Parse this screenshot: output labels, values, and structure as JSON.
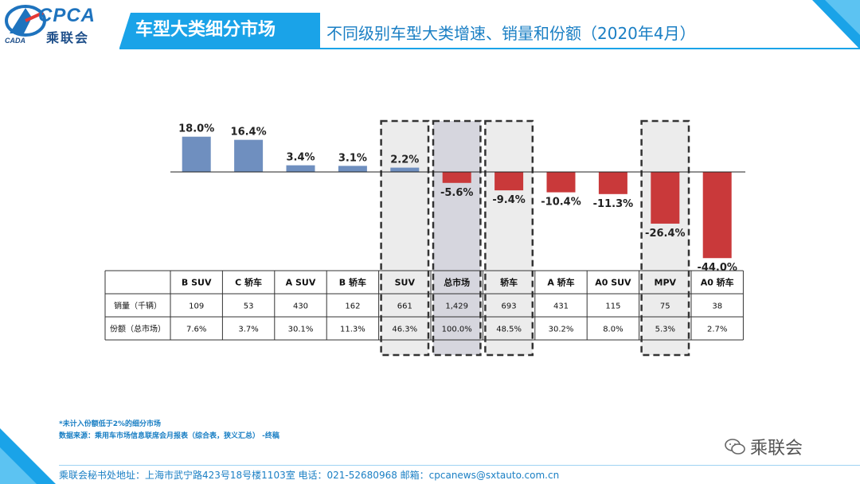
{
  "header": {
    "logo_main": "CPCA",
    "logo_sub": "乘联会",
    "logo_mini": "CADA",
    "title": "车型大类细分市场",
    "subtitle": "不同级别车型大类增速、销量和份额（2020年4月）"
  },
  "colors": {
    "positive_bar": "#6f8fbf",
    "negative_bar": "#c9393a",
    "highlight_fill": "#ececec",
    "highlight_fill_total": "#d6d6de",
    "accent": "#1aa3e8"
  },
  "chart_data": {
    "type": "bar",
    "title": "不同级别车型大类增速、销量和份额（2020年4月）",
    "categories": [
      "B SUV",
      "C 轿车",
      "A SUV",
      "B 轿车",
      "SUV",
      "总市场",
      "轿车",
      "A 轿车",
      "A0 SUV",
      "MPV",
      "A0 轿车"
    ],
    "series": [
      {
        "name": "增速",
        "values": [
          18.0,
          16.4,
          3.4,
          3.1,
          2.2,
          -5.6,
          -9.4,
          -10.4,
          -11.3,
          -26.4,
          -44.0
        ]
      }
    ],
    "value_labels": [
      "18.0%",
      "16.4%",
      "3.4%",
      "3.1%",
      "2.2%",
      "-5.6%",
      "-9.4%",
      "-10.4%",
      "-11.3%",
      "-26.4%",
      "-44.0%"
    ],
    "highlighted": [
      "SUV",
      "总市场",
      "轿车",
      "MPV"
    ],
    "ylim": [
      -44.0,
      18.0
    ],
    "xlabel": "",
    "ylabel": ""
  },
  "table": {
    "header_label": "",
    "rows": [
      {
        "label": "销量（千辆）",
        "values": [
          "109",
          "53",
          "430",
          "162",
          "661",
          "1,429",
          "693",
          "431",
          "115",
          "75",
          "38"
        ]
      },
      {
        "label": "份额（总市场）",
        "values": [
          "7.6%",
          "3.7%",
          "30.1%",
          "11.3%",
          "46.3%",
          "100.0%",
          "48.5%",
          "30.2%",
          "8.0%",
          "5.3%",
          "2.7%"
        ]
      }
    ]
  },
  "notes": {
    "line1": "*未计入份额低于2%的细分市场",
    "line2": "数据来源：乘用车市场信息联席会月报表（综合表，狭义汇总）  -终稿"
  },
  "wechat_label": "乘联会",
  "footer": "乘联会秘书处地址：上海市武宁路423号18号楼1103室  电话：021-52680968  邮箱：cpcanews@sxtauto.com.cn"
}
